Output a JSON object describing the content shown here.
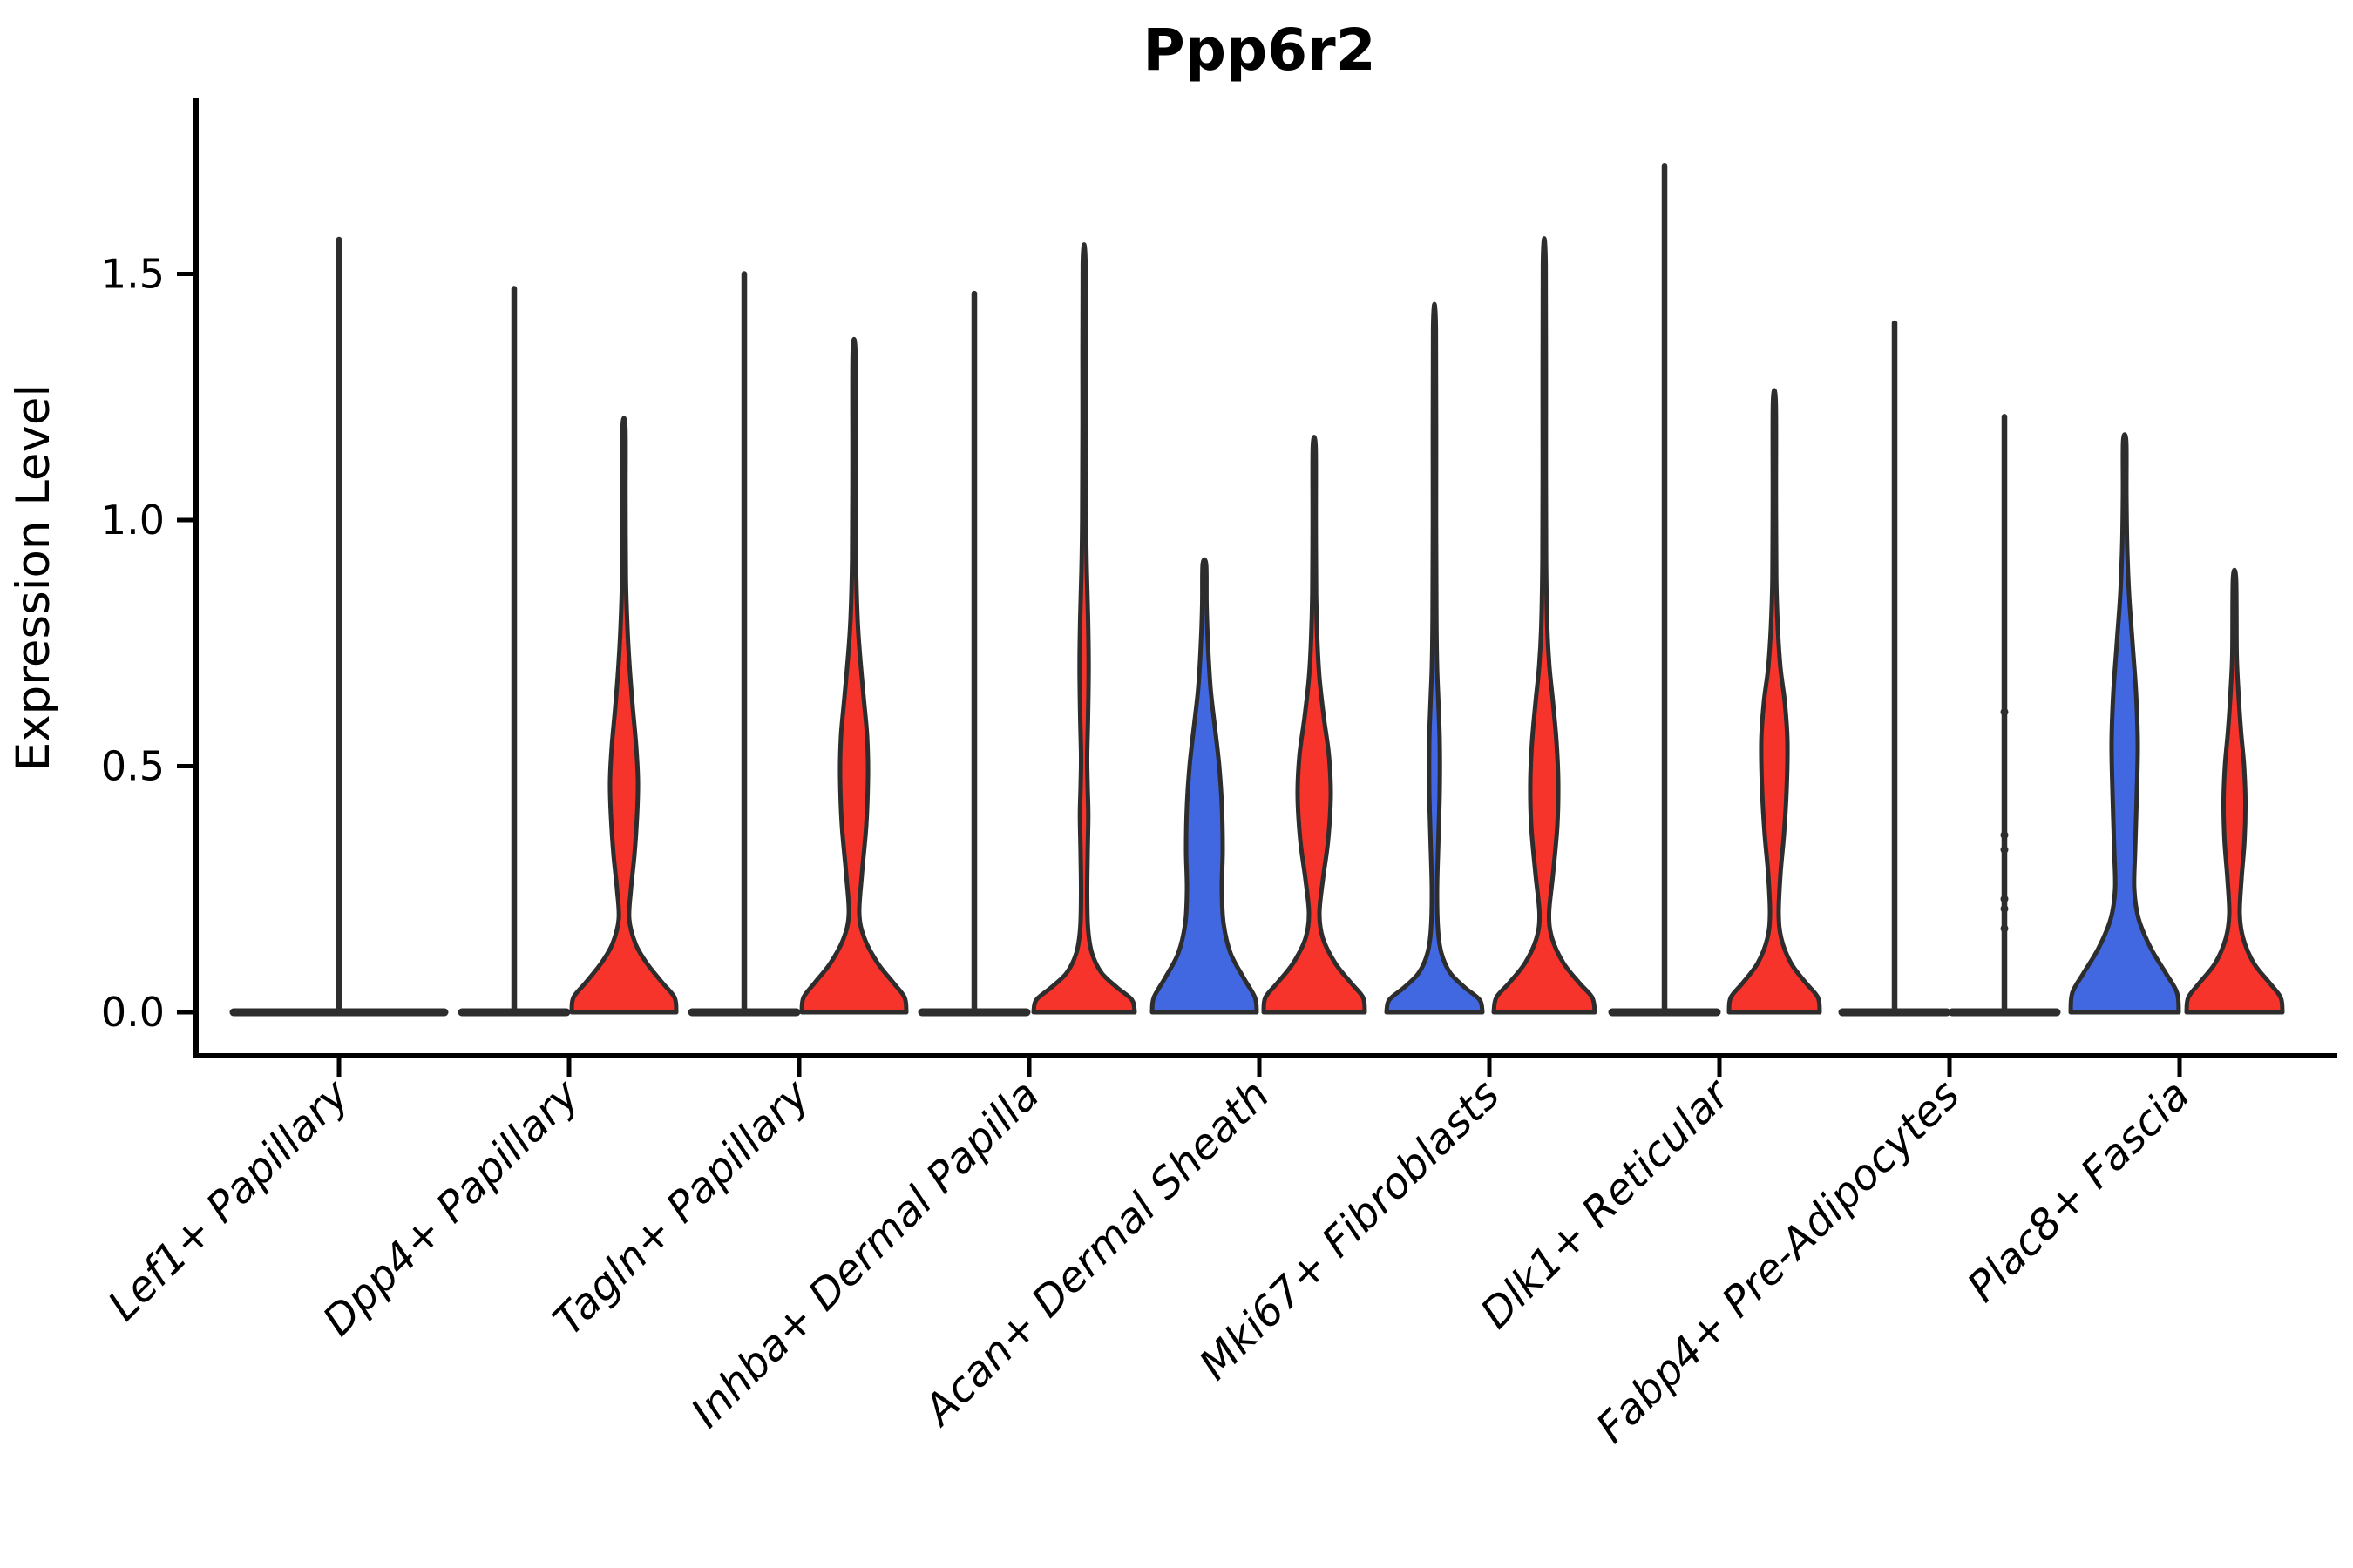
{
  "chart_data": {
    "type": "violin",
    "title": "Ppp6r2",
    "ylabel": "Expression Level",
    "xlabel": "",
    "grid": false,
    "legend": "none",
    "ytick_labels": [
      "0.0",
      "0.5",
      "1.0",
      "1.5"
    ],
    "ytick_values": [
      0,
      0.5,
      1.0,
      1.5
    ],
    "ylim": [
      0,
      1.85
    ],
    "colors": {
      "series_blue": "#4168e0",
      "series_red": "#f7342c",
      "outline": "#2d2d2d",
      "axis": "#000000",
      "text": "#000000",
      "background": "#ffffff"
    },
    "categories": [
      "Lef1+ Papillary",
      "Dpp4+ Papillary",
      "Tagln+ Papillary",
      "Inhba+ Dermal Papilla",
      "Acan+ Dermal Sheath",
      "Mki67+ Fibroblasts",
      "Dlk1+ Reticular",
      "Fabp4+ Pre-Adipocytes",
      "Plac8+ Fascia"
    ],
    "violins": [
      {
        "category_index": 0,
        "side": "full",
        "color": "none",
        "flat": true,
        "max": 1.57
      },
      {
        "category_index": 1,
        "side": "left",
        "color": "blue",
        "flat": true,
        "max": 1.47
      },
      {
        "category_index": 1,
        "side": "right",
        "color": "red",
        "flat": false,
        "max": 1.19,
        "profile": [
          [
            0,
            60
          ],
          [
            0.03,
            58
          ],
          [
            0.06,
            44
          ],
          [
            0.1,
            26
          ],
          [
            0.14,
            13
          ],
          [
            0.19,
            6
          ],
          [
            0.25,
            8
          ],
          [
            0.32,
            12
          ],
          [
            0.4,
            15
          ],
          [
            0.47,
            16
          ],
          [
            0.54,
            14
          ],
          [
            0.62,
            10
          ],
          [
            0.7,
            6.5
          ],
          [
            0.78,
            4
          ],
          [
            0.88,
            2.2
          ],
          [
            1.05,
            1.8
          ],
          [
            1.19,
            1.6
          ]
        ]
      },
      {
        "category_index": 2,
        "side": "left",
        "color": "blue",
        "flat": true,
        "max": 1.5
      },
      {
        "category_index": 2,
        "side": "right",
        "color": "red",
        "flat": false,
        "max": 1.34,
        "profile": [
          [
            0,
            60
          ],
          [
            0.03,
            58
          ],
          [
            0.06,
            45
          ],
          [
            0.1,
            27
          ],
          [
            0.15,
            12
          ],
          [
            0.2,
            6
          ],
          [
            0.28,
            9
          ],
          [
            0.38,
            14
          ],
          [
            0.48,
            16
          ],
          [
            0.56,
            15
          ],
          [
            0.64,
            11
          ],
          [
            0.72,
            7
          ],
          [
            0.8,
            4
          ],
          [
            0.92,
            2.2
          ],
          [
            1.12,
            1.8
          ],
          [
            1.34,
            1.6
          ]
        ]
      },
      {
        "category_index": 3,
        "side": "left",
        "color": "blue",
        "flat": true,
        "max": 1.46
      },
      {
        "category_index": 3,
        "side": "right",
        "color": "red",
        "flat": false,
        "max": 1.52,
        "profile": [
          [
            0,
            58
          ],
          [
            0.025,
            55
          ],
          [
            0.05,
            38
          ],
          [
            0.08,
            20
          ],
          [
            0.12,
            9
          ],
          [
            0.17,
            4.5
          ],
          [
            0.24,
            3.5
          ],
          [
            0.32,
            4
          ],
          [
            0.4,
            4.8
          ],
          [
            0.46,
            4
          ],
          [
            0.52,
            3.5
          ],
          [
            0.6,
            4.5
          ],
          [
            0.7,
            5.2
          ],
          [
            0.8,
            4.5
          ],
          [
            0.9,
            3
          ],
          [
            1.0,
            2.2
          ],
          [
            1.2,
            1.8
          ],
          [
            1.52,
            1.6
          ]
        ]
      },
      {
        "category_index": 4,
        "side": "left",
        "color": "blue",
        "flat": false,
        "max": 0.91,
        "profile": [
          [
            0,
            60
          ],
          [
            0.03,
            58
          ],
          [
            0.07,
            45
          ],
          [
            0.12,
            30
          ],
          [
            0.18,
            22
          ],
          [
            0.25,
            20
          ],
          [
            0.33,
            21
          ],
          [
            0.42,
            20
          ],
          [
            0.5,
            17
          ],
          [
            0.58,
            12
          ],
          [
            0.66,
            7
          ],
          [
            0.75,
            4
          ],
          [
            0.83,
            2.5
          ],
          [
            0.91,
            2
          ]
        ]
      },
      {
        "category_index": 4,
        "side": "right",
        "color": "red",
        "flat": false,
        "max": 1.15,
        "profile": [
          [
            0,
            58
          ],
          [
            0.03,
            56
          ],
          [
            0.06,
            42
          ],
          [
            0.1,
            24
          ],
          [
            0.15,
            10
          ],
          [
            0.2,
            6
          ],
          [
            0.27,
            10
          ],
          [
            0.35,
            16
          ],
          [
            0.44,
            19
          ],
          [
            0.52,
            17
          ],
          [
            0.6,
            11
          ],
          [
            0.68,
            6
          ],
          [
            0.76,
            3.5
          ],
          [
            0.85,
            2.2
          ],
          [
            1.0,
            1.8
          ],
          [
            1.15,
            1.6
          ]
        ]
      },
      {
        "category_index": 5,
        "side": "left",
        "color": "blue",
        "flat": false,
        "max": 1.39,
        "profile": [
          [
            0,
            55
          ],
          [
            0.025,
            52
          ],
          [
            0.05,
            35
          ],
          [
            0.08,
            18
          ],
          [
            0.12,
            8
          ],
          [
            0.17,
            4
          ],
          [
            0.25,
            3
          ],
          [
            0.35,
            4.5
          ],
          [
            0.45,
            6
          ],
          [
            0.55,
            6
          ],
          [
            0.63,
            4.5
          ],
          [
            0.7,
            3
          ],
          [
            0.8,
            2.2
          ],
          [
            1.0,
            1.8
          ],
          [
            1.39,
            1.6
          ]
        ]
      },
      {
        "category_index": 5,
        "side": "right",
        "color": "red",
        "flat": false,
        "max": 1.52,
        "profile": [
          [
            0,
            58
          ],
          [
            0.03,
            55
          ],
          [
            0.06,
            40
          ],
          [
            0.1,
            22
          ],
          [
            0.15,
            9
          ],
          [
            0.2,
            5.5
          ],
          [
            0.28,
            10
          ],
          [
            0.38,
            15
          ],
          [
            0.47,
            16
          ],
          [
            0.55,
            14
          ],
          [
            0.63,
            10
          ],
          [
            0.7,
            6
          ],
          [
            0.78,
            3.5
          ],
          [
            0.9,
            2.2
          ],
          [
            1.1,
            1.8
          ],
          [
            1.52,
            1.6
          ]
        ]
      },
      {
        "category_index": 6,
        "side": "left",
        "color": "blue",
        "flat": true,
        "max": 1.72
      },
      {
        "category_index": 6,
        "side": "right",
        "color": "red",
        "flat": false,
        "max": 1.24,
        "profile": [
          [
            0,
            52
          ],
          [
            0.03,
            50
          ],
          [
            0.06,
            36
          ],
          [
            0.1,
            19
          ],
          [
            0.15,
            8
          ],
          [
            0.2,
            5
          ],
          [
            0.28,
            7
          ],
          [
            0.36,
            11
          ],
          [
            0.45,
            14
          ],
          [
            0.55,
            15
          ],
          [
            0.63,
            12
          ],
          [
            0.7,
            7
          ],
          [
            0.78,
            4
          ],
          [
            0.88,
            2.2
          ],
          [
            1.05,
            1.8
          ],
          [
            1.24,
            1.6
          ]
        ]
      },
      {
        "category_index": 7,
        "side": "left",
        "color": "blue",
        "flat": true,
        "max": 1.4
      },
      {
        "category_index": 7,
        "side": "right",
        "color": "red",
        "flat": true,
        "max": 1.21,
        "dots": [
          0.61,
          0.36,
          0.33,
          0.23,
          0.21,
          0.17
        ]
      },
      {
        "category_index": 8,
        "side": "left",
        "color": "blue",
        "flat": false,
        "max": 1.16,
        "profile": [
          [
            0,
            62
          ],
          [
            0.04,
            60
          ],
          [
            0.08,
            47
          ],
          [
            0.13,
            30
          ],
          [
            0.19,
            16
          ],
          [
            0.25,
            11
          ],
          [
            0.33,
            12
          ],
          [
            0.45,
            14
          ],
          [
            0.55,
            15
          ],
          [
            0.65,
            13
          ],
          [
            0.75,
            9
          ],
          [
            0.85,
            5
          ],
          [
            0.95,
            2.8
          ],
          [
            1.05,
            2
          ],
          [
            1.16,
            1.8
          ]
        ]
      },
      {
        "category_index": 8,
        "side": "right",
        "color": "red",
        "flat": false,
        "max": 0.88,
        "profile": [
          [
            0,
            55
          ],
          [
            0.03,
            53
          ],
          [
            0.06,
            40
          ],
          [
            0.1,
            22
          ],
          [
            0.15,
            10
          ],
          [
            0.2,
            6
          ],
          [
            0.27,
            8
          ],
          [
            0.35,
            11.5
          ],
          [
            0.43,
            12.5
          ],
          [
            0.5,
            11
          ],
          [
            0.57,
            7.5
          ],
          [
            0.65,
            4.5
          ],
          [
            0.73,
            2.5
          ],
          [
            0.88,
            1.8
          ]
        ]
      }
    ]
  }
}
